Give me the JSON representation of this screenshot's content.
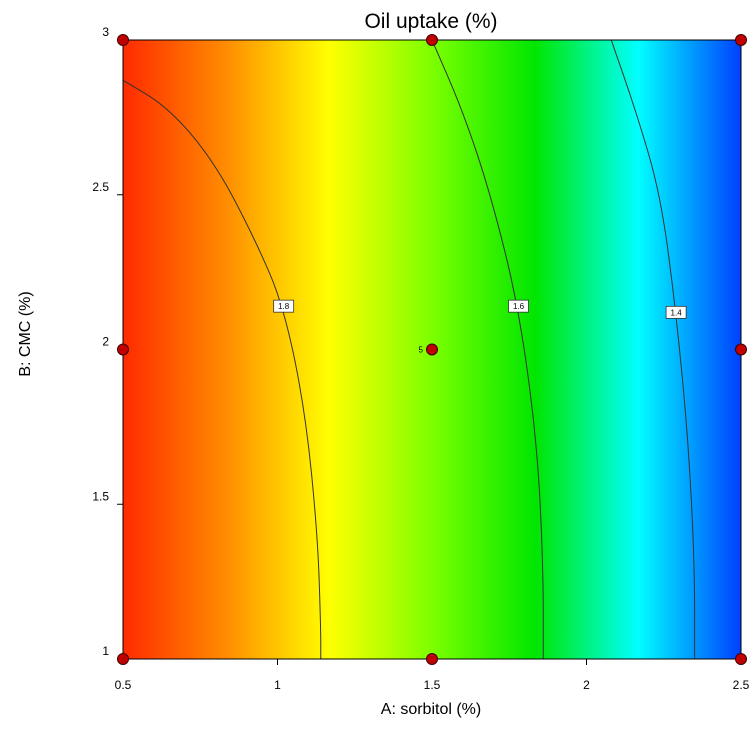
{
  "chart_data": {
    "type": "contour",
    "title": "Oil uptake (%)",
    "xlabel": "A: sorbitol (%)",
    "ylabel": "B: CMC (%)",
    "xlim": [
      0.5,
      2.5
    ],
    "ylim": [
      1,
      3
    ],
    "x_ticks": [
      "0.5",
      "1",
      "1.5",
      "2",
      "2.5"
    ],
    "y_ticks": [
      "1",
      "1.5",
      "2",
      "2.5",
      "3"
    ],
    "colorscale": [
      "#ff2a00",
      "#ff8c00",
      "#ffff00",
      "#7cff00",
      "#00e600",
      "#00ffff",
      "#0040ff"
    ],
    "contours": [
      {
        "level": "1.8",
        "points": [
          [
            0.5,
            2.87
          ],
          [
            0.65,
            2.78
          ],
          [
            0.8,
            2.6
          ],
          [
            0.93,
            2.35
          ],
          [
            1.02,
            2.14
          ],
          [
            1.09,
            1.8
          ],
          [
            1.13,
            1.4
          ],
          [
            1.14,
            1.1
          ],
          [
            1.14,
            1.0
          ]
        ],
        "label_at": [
          1.02,
          2.14
        ]
      },
      {
        "level": "1.6",
        "points": [
          [
            1.5,
            3.0
          ],
          [
            1.6,
            2.77
          ],
          [
            1.69,
            2.5
          ],
          [
            1.78,
            2.14
          ],
          [
            1.84,
            1.7
          ],
          [
            1.86,
            1.3
          ],
          [
            1.86,
            1.0
          ]
        ],
        "label_at": [
          1.78,
          2.14
        ]
      },
      {
        "level": "1.4",
        "points": [
          [
            2.08,
            3.0
          ],
          [
            2.16,
            2.77
          ],
          [
            2.24,
            2.5
          ],
          [
            2.29,
            2.12
          ],
          [
            2.33,
            1.7
          ],
          [
            2.35,
            1.3
          ],
          [
            2.35,
            1.0
          ]
        ],
        "label_at": [
          2.29,
          2.12
        ]
      }
    ],
    "design_points": [
      {
        "x": 0.5,
        "y": 3
      },
      {
        "x": 1.5,
        "y": 3
      },
      {
        "x": 2.5,
        "y": 3
      },
      {
        "x": 0.5,
        "y": 2
      },
      {
        "x": 1.5,
        "y": 2,
        "label": "5"
      },
      {
        "x": 2.5,
        "y": 2
      },
      {
        "x": 0.5,
        "y": 1
      },
      {
        "x": 1.5,
        "y": 1
      },
      {
        "x": 2.5,
        "y": 1
      }
    ],
    "point_color": "#c00000"
  }
}
